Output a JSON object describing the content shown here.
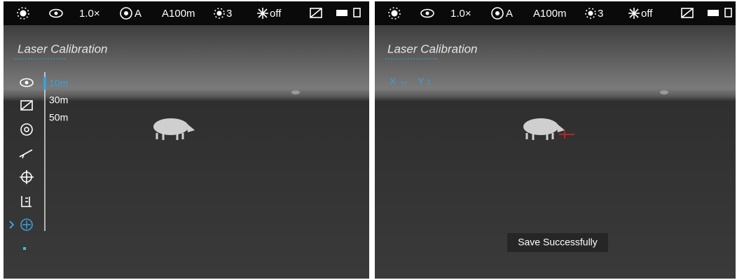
{
  "panels": [
    {
      "status_bar": {
        "zoom": "1.0×",
        "aperture": "A",
        "range": "A100m",
        "brightness": "3",
        "laser": "off"
      },
      "title": "Laser Calibration",
      "distances": [
        "10m",
        "30m",
        "50m"
      ]
    },
    {
      "status_bar": {
        "zoom": "1.0×",
        "aperture": "A",
        "range": "A100m",
        "brightness": "3",
        "laser": "off"
      },
      "title": "Laser Calibration",
      "axes": [
        "X ↔",
        "Y ↕"
      ],
      "toast": "Save Successfully"
    }
  ]
}
